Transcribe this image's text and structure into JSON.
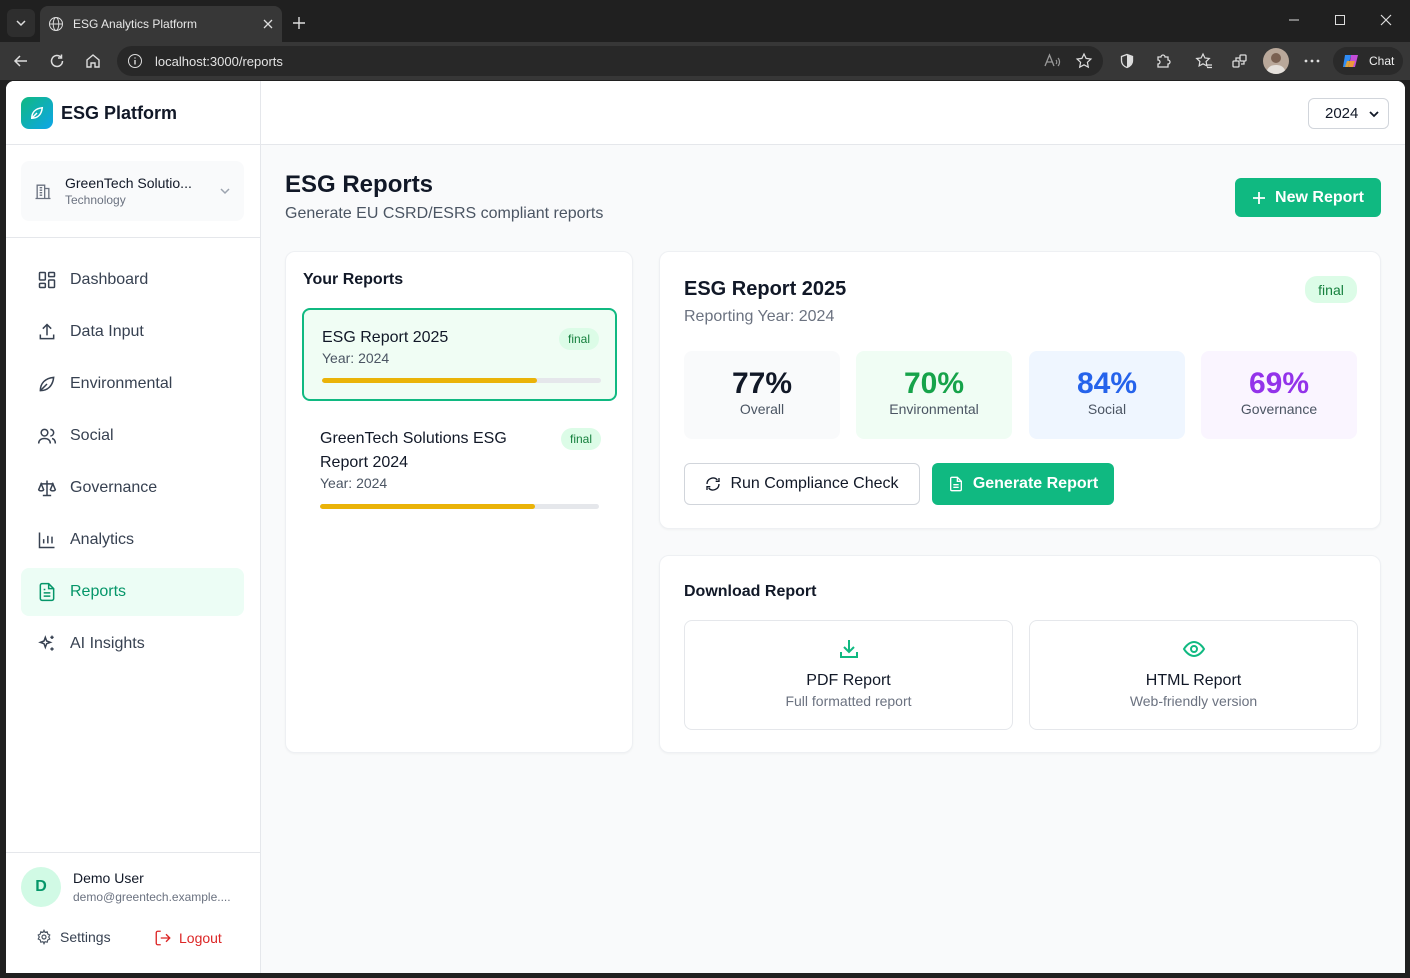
{
  "browser": {
    "tab_title": "ESG Analytics Platform",
    "url": "localhost:3000/reports",
    "chat_label": "Chat"
  },
  "sidebar": {
    "brand": "ESG Platform",
    "org_name": "GreenTech Solutio...",
    "org_industry": "Technology",
    "nav": [
      {
        "label": "Dashboard",
        "icon": "dashboard-icon"
      },
      {
        "label": "Data Input",
        "icon": "upload-icon"
      },
      {
        "label": "Environmental",
        "icon": "leaf-icon"
      },
      {
        "label": "Social",
        "icon": "users-icon"
      },
      {
        "label": "Governance",
        "icon": "scale-icon"
      },
      {
        "label": "Analytics",
        "icon": "bar-chart-icon"
      },
      {
        "label": "Reports",
        "icon": "file-text-icon",
        "active": true
      },
      {
        "label": "AI Insights",
        "icon": "sparkles-icon"
      }
    ],
    "user": {
      "initial": "D",
      "name": "Demo User",
      "email": "demo@greentech.example...."
    },
    "settings_label": "Settings",
    "logout_label": "Logout"
  },
  "header": {
    "year": "2024"
  },
  "page": {
    "title": "ESG Reports",
    "subtitle": "Generate EU CSRD/ESRS compliant reports",
    "new_report_label": "New Report"
  },
  "reports_list": {
    "heading": "Your Reports",
    "items": [
      {
        "title": "ESG Report 2025",
        "year": "Year: 2024",
        "status": "final",
        "progress": 0.77
      },
      {
        "title": "GreenTech Solutions ESG Report 2024",
        "year": "Year: 2024",
        "status": "final",
        "progress": 0.77
      }
    ]
  },
  "detail": {
    "title": "ESG Report 2025",
    "subtitle": "Reporting Year: 2024",
    "status": "final",
    "scores": [
      {
        "value": "77%",
        "label": "Overall",
        "color": "#111827",
        "bg": "#f9fafb"
      },
      {
        "value": "70%",
        "label": "Environmental",
        "color": "#16a34a",
        "bg": "#f0fdf4"
      },
      {
        "value": "84%",
        "label": "Social",
        "color": "#2563eb",
        "bg": "#eff6ff"
      },
      {
        "value": "69%",
        "label": "Governance",
        "color": "#9333ea",
        "bg": "#faf5ff"
      }
    ],
    "compliance_label": "Run Compliance Check",
    "generate_label": "Generate Report"
  },
  "download": {
    "heading": "Download Report",
    "pdf_title": "PDF Report",
    "pdf_sub": "Full formatted report",
    "html_title": "HTML Report",
    "html_sub": "Web-friendly version"
  },
  "colors": {
    "accent": "#10b981",
    "accent_dark": "#059669",
    "progress": "#eab308",
    "danger": "#dc2626"
  }
}
